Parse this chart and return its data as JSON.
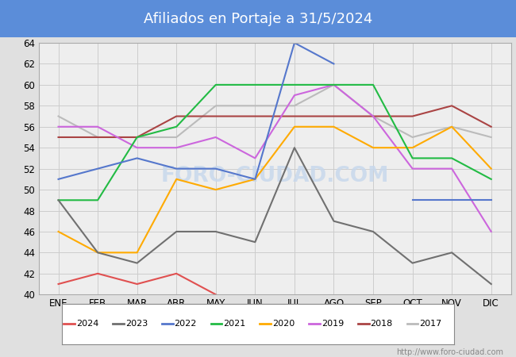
{
  "title": "Afiliados en Portaje a 31/5/2024",
  "title_bg_color": "#5b8dd9",
  "title_text_color": "white",
  "months": [
    "ENE",
    "FEB",
    "MAR",
    "ABR",
    "MAY",
    "JUN",
    "JUL",
    "AGO",
    "SEP",
    "OCT",
    "NOV",
    "DIC"
  ],
  "ylim": [
    40,
    64
  ],
  "yticks": [
    40,
    42,
    44,
    46,
    48,
    50,
    52,
    54,
    56,
    58,
    60,
    62,
    64
  ],
  "series": {
    "2024": {
      "color": "#e05050",
      "data": [
        41,
        42,
        41,
        42,
        40,
        null,
        null,
        null,
        null,
        null,
        null,
        null
      ]
    },
    "2023": {
      "color": "#707070",
      "data": [
        49,
        44,
        43,
        46,
        46,
        45,
        54,
        47,
        46,
        43,
        44,
        41
      ]
    },
    "2022": {
      "color": "#5577cc",
      "data": [
        51,
        52,
        53,
        52,
        52,
        51,
        64,
        62,
        null,
        49,
        49,
        49
      ]
    },
    "2021": {
      "color": "#22bb44",
      "data": [
        49,
        49,
        55,
        56,
        60,
        60,
        60,
        60,
        60,
        53,
        53,
        51
      ]
    },
    "2020": {
      "color": "#ffaa00",
      "data": [
        46,
        44,
        44,
        51,
        50,
        51,
        56,
        56,
        54,
        54,
        56,
        52
      ]
    },
    "2019": {
      "color": "#cc66dd",
      "data": [
        56,
        56,
        54,
        54,
        55,
        53,
        59,
        60,
        57,
        52,
        52,
        46
      ]
    },
    "2018": {
      "color": "#aa4444",
      "data": [
        55,
        55,
        55,
        57,
        57,
        57,
        57,
        57,
        57,
        57,
        58,
        56
      ]
    },
    "2017": {
      "color": "#bbbbbb",
      "data": [
        57,
        55,
        55,
        55,
        58,
        58,
        58,
        60,
        57,
        55,
        56,
        55
      ]
    }
  },
  "watermark_plot": "FORO-CIUDAD.COM",
  "watermark_url": "http://www.foro-ciudad.com",
  "bg_color": "#e0e0e0",
  "plot_bg_color": "#eeeeee",
  "grid_color": "#cccccc",
  "legend_bg": "white",
  "legend_border": "#888888"
}
